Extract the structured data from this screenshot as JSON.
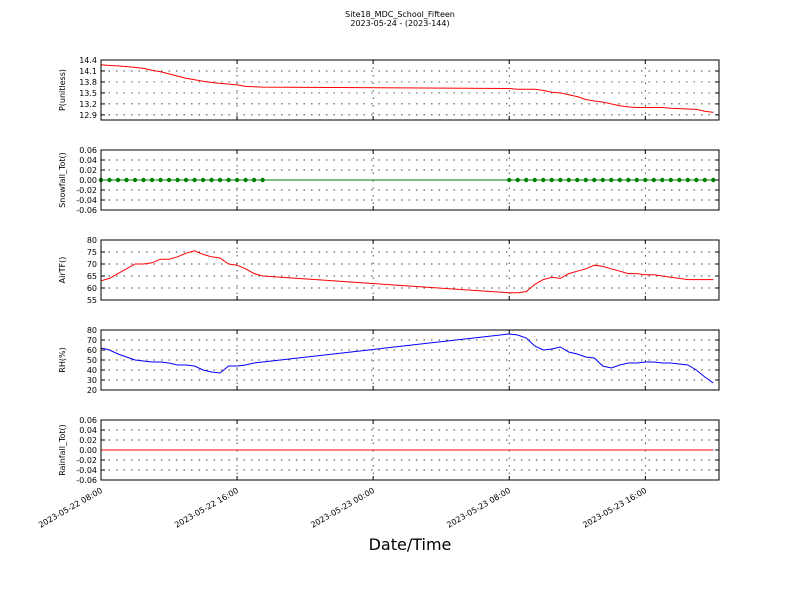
{
  "title": "Site18_MDC_School_Fifteen",
  "subtitle": "2023-05-24 - (2023-144)",
  "x_label": "Date/Time",
  "xlim": [
    "2023-05-22 08:00",
    "2023-05-23 20:20"
  ],
  "xticks": [
    "2023-05-22 08:00",
    "2023-05-22 16:00",
    "2023-05-23 00:00",
    "2023-05-23 08:00",
    "2023-05-23 16:00"
  ],
  "x": [
    "2023-05-22 08:00",
    "2023-05-22 08:30",
    "2023-05-22 09:00",
    "2023-05-22 09:30",
    "2023-05-22 10:00",
    "2023-05-22 10:30",
    "2023-05-22 11:00",
    "2023-05-22 11:30",
    "2023-05-22 12:00",
    "2023-05-22 12:30",
    "2023-05-22 13:00",
    "2023-05-22 13:30",
    "2023-05-22 14:00",
    "2023-05-22 14:30",
    "2023-05-22 15:00",
    "2023-05-22 15:30",
    "2023-05-22 16:00",
    "2023-05-22 16:30",
    "2023-05-22 17:00",
    "2023-05-22 17:30",
    "2023-05-23 08:00",
    "2023-05-23 08:30",
    "2023-05-23 09:00",
    "2023-05-23 09:30",
    "2023-05-23 10:00",
    "2023-05-23 10:30",
    "2023-05-23 11:00",
    "2023-05-23 11:30",
    "2023-05-23 12:00",
    "2023-05-23 12:30",
    "2023-05-23 13:00",
    "2023-05-23 13:30",
    "2023-05-23 14:00",
    "2023-05-23 14:30",
    "2023-05-23 15:00",
    "2023-05-23 15:30",
    "2023-05-23 16:00",
    "2023-05-23 16:30",
    "2023-05-23 17:00",
    "2023-05-23 17:30",
    "2023-05-23 18:00",
    "2023-05-23 18:30",
    "2023-05-23 19:00",
    "2023-05-23 19:30",
    "2023-05-23 20:00"
  ],
  "chart_data": [
    {
      "type": "line",
      "y_label": "P(unitless)",
      "color": "#ff0000",
      "ylim": [
        12.76,
        14.4
      ],
      "yticks": [
        12.9,
        13.2,
        13.5,
        13.8,
        14.1,
        14.4
      ],
      "grid": true,
      "values": [
        14.27,
        14.25,
        14.24,
        14.22,
        14.2,
        14.17,
        14.12,
        14.08,
        14.02,
        13.96,
        13.9,
        13.86,
        13.82,
        13.79,
        13.76,
        13.74,
        13.72,
        13.68,
        13.67,
        13.66,
        13.62,
        13.6,
        13.6,
        13.6,
        13.57,
        13.52,
        13.5,
        13.45,
        13.4,
        13.32,
        13.28,
        13.25,
        13.2,
        13.15,
        13.12,
        13.1,
        13.1,
        13.1,
        13.1,
        13.08,
        13.07,
        13.06,
        13.05,
        13.0,
        12.97
      ]
    },
    {
      "type": "line",
      "y_label": "Snowfall_Tot()",
      "color": "#008000",
      "marker": "o",
      "ylim": [
        -0.06,
        0.06
      ],
      "yticks": [
        -0.06,
        -0.04,
        -0.02,
        {
          "value": 0,
          "label": "0.00"
        },
        0.02,
        0.04,
        0.06
      ],
      "grid": true,
      "values": [
        0,
        0,
        0,
        0,
        0,
        0,
        0,
        0,
        0,
        0,
        0,
        0,
        0,
        0,
        0,
        0,
        0,
        0,
        0,
        0,
        0,
        0,
        0,
        0,
        0,
        0,
        0,
        0,
        0,
        0,
        0,
        0,
        0,
        0,
        0,
        0,
        0,
        0,
        0,
        0,
        0,
        0,
        0,
        0,
        0
      ]
    },
    {
      "type": "line",
      "y_label": "AirTF()",
      "color": "#ff0000",
      "ylim": [
        55,
        80
      ],
      "yticks": [
        55,
        60,
        65,
        70,
        75,
        80
      ],
      "grid": true,
      "values": [
        63,
        64,
        66,
        68,
        70,
        70,
        70.5,
        72,
        72,
        73,
        74.5,
        75.5,
        74,
        73,
        72.5,
        70,
        69.5,
        68,
        66,
        65,
        58,
        58,
        58.5,
        61.5,
        63.5,
        64.5,
        64,
        66,
        67,
        68,
        69.5,
        69,
        68,
        67,
        66,
        66,
        65.5,
        65.5,
        65,
        64.5,
        64,
        63.5,
        63.5,
        63.5,
        63.5
      ]
    },
    {
      "type": "line",
      "y_label": "RH(%)",
      "color": "#0000ff",
      "ylim": [
        20,
        80
      ],
      "yticks": [
        20,
        30,
        40,
        50,
        60,
        70,
        80
      ],
      "grid": true,
      "values": [
        62,
        60,
        56,
        53,
        50,
        49,
        48,
        48,
        47,
        45,
        45,
        44,
        40,
        38,
        37,
        44,
        44,
        45,
        47,
        48,
        76,
        75,
        72,
        64,
        60,
        61,
        63,
        58,
        56,
        53,
        52,
        44,
        42,
        45,
        47,
        47,
        48,
        48,
        47,
        47,
        46,
        45,
        40,
        33,
        27
      ]
    },
    {
      "type": "line",
      "y_label": "Rainfall_Tot()",
      "color": "#ff0000",
      "ylim": [
        -0.06,
        0.06
      ],
      "yticks": [
        -0.06,
        -0.04,
        -0.02,
        {
          "value": 0,
          "label": "0.00"
        },
        0.02,
        0.04,
        0.06
      ],
      "grid": true,
      "values": [
        0,
        0,
        0,
        0,
        0,
        0,
        0,
        0,
        0,
        0,
        0,
        0,
        0,
        0,
        0,
        0,
        0,
        0,
        0,
        0,
        0,
        0,
        0,
        0,
        0,
        0,
        0,
        0,
        0,
        0,
        0,
        0,
        0,
        0,
        0,
        0,
        0,
        0,
        0,
        0,
        0,
        0,
        0,
        0,
        0
      ]
    }
  ]
}
